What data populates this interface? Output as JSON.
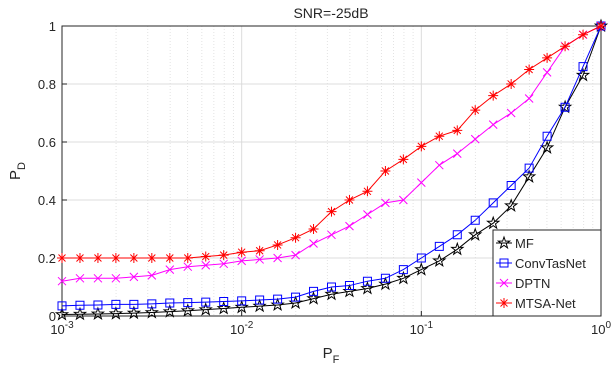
{
  "chart_data": {
    "type": "line",
    "title": "SNR=-25dB",
    "xlabel": {
      "text": "P",
      "subscript": "F"
    },
    "ylabel": {
      "text": "P",
      "subscript": "D"
    },
    "xscale": "log",
    "grid": true,
    "minor_grid": true,
    "legend": "lower right",
    "xlim": [
      0.001,
      1
    ],
    "ylim": [
      0,
      1
    ],
    "xticks": [
      {
        "value": 0.001,
        "label": "10",
        "exponent": "-3"
      },
      {
        "value": 0.01,
        "label": "10",
        "exponent": "-2"
      },
      {
        "value": 0.1,
        "label": "10",
        "exponent": "-1"
      },
      {
        "value": 1,
        "label": "10",
        "exponent": "0"
      }
    ],
    "yticks": [
      0,
      0.2,
      0.4,
      0.6,
      0.8,
      1
    ],
    "x": [
      0.001,
      0.001259,
      0.001585,
      0.001995,
      0.002512,
      0.003162,
      0.003981,
      0.005012,
      0.00631,
      0.007943,
      0.01,
      0.01259,
      0.01585,
      0.01995,
      0.02512,
      0.03162,
      0.03981,
      0.05012,
      0.0631,
      0.07943,
      0.1,
      0.1259,
      0.1585,
      0.1995,
      0.2512,
      0.3162,
      0.3981,
      0.5012,
      0.631,
      0.7943,
      1
    ],
    "series": [
      {
        "name": "MF",
        "color": "#000000",
        "marker": "pentagram",
        "values": [
          0.005,
          0.006,
          0.007,
          0.008,
          0.01,
          0.012,
          0.015,
          0.018,
          0.022,
          0.026,
          0.03,
          0.034,
          0.038,
          0.045,
          0.06,
          0.075,
          0.085,
          0.095,
          0.11,
          0.13,
          0.16,
          0.19,
          0.23,
          0.28,
          0.32,
          0.38,
          0.48,
          0.58,
          0.72,
          0.83,
          1
        ]
      },
      {
        "name": "ConvTasNet",
        "color": "#0000ff",
        "marker": "square",
        "values": [
          0.035,
          0.037,
          0.038,
          0.04,
          0.04,
          0.042,
          0.045,
          0.046,
          0.048,
          0.05,
          0.052,
          0.055,
          0.058,
          0.065,
          0.085,
          0.1,
          0.105,
          0.12,
          0.13,
          0.16,
          0.2,
          0.24,
          0.28,
          0.33,
          0.39,
          0.45,
          0.51,
          0.62,
          0.72,
          0.86,
          1
        ]
      },
      {
        "name": "DPTN",
        "color": "#ff00ff",
        "marker": "x",
        "values": [
          0.12,
          0.13,
          0.13,
          0.13,
          0.135,
          0.14,
          0.16,
          0.17,
          0.175,
          0.18,
          0.19,
          0.195,
          0.2,
          0.21,
          0.25,
          0.28,
          0.31,
          0.35,
          0.39,
          0.4,
          0.46,
          0.52,
          0.56,
          0.61,
          0.66,
          0.7,
          0.75,
          0.84,
          0.93,
          0.97,
          1
        ]
      },
      {
        "name": "MTSA-Net",
        "color": "#ff0000",
        "marker": "asterisk",
        "values": [
          0.2,
          0.2,
          0.2,
          0.2,
          0.2,
          0.2,
          0.2,
          0.2,
          0.205,
          0.21,
          0.22,
          0.225,
          0.245,
          0.27,
          0.3,
          0.36,
          0.4,
          0.43,
          0.5,
          0.54,
          0.585,
          0.62,
          0.64,
          0.71,
          0.76,
          0.8,
          0.85,
          0.89,
          0.93,
          0.97,
          1
        ]
      }
    ]
  }
}
